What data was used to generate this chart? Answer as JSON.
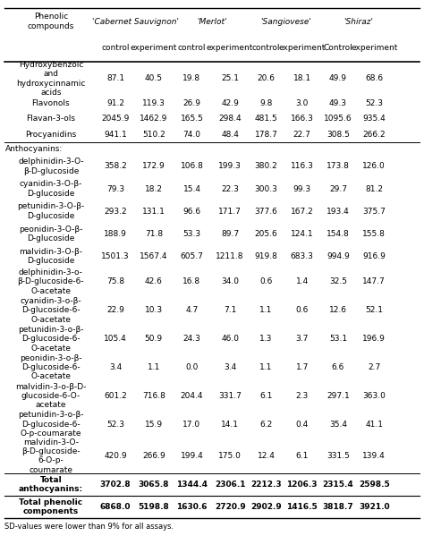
{
  "variety_headers": [
    "'Cabernet Sauvignon'",
    "'Merlot'",
    "'Sangiovese'",
    "'Shiraz'"
  ],
  "sub_headers": [
    "control",
    "experiment",
    "control",
    "experiment",
    "control",
    "experiment",
    "Control",
    "experiment"
  ],
  "rows": [
    [
      "Hydroxybenzoic\nand\nhydroxycinnamic\nacids",
      "87.1",
      "40.5",
      "19.8",
      "25.1",
      "20.6",
      "18.1",
      "49.9",
      "68.6"
    ],
    [
      "Flavonols",
      "91.2",
      "119.3",
      "26.9",
      "42.9",
      "9.8",
      "3.0",
      "49.3",
      "52.3"
    ],
    [
      "Flavan-3-ols",
      "2045.9",
      "1462.9",
      "165.5",
      "298.4",
      "481.5",
      "166.3",
      "1095.6",
      "935.4"
    ],
    [
      "Procyanidins",
      "941.1",
      "510.2",
      "74.0",
      "48.4",
      "178.7",
      "22.7",
      "308.5",
      "266.2"
    ],
    [
      "Anthocyanins:",
      "",
      "",
      "",
      "",
      "",
      "",
      "",
      ""
    ],
    [
      "delphinidin-3-O-\nβ-D-glucoside",
      "358.2",
      "172.9",
      "106.8",
      "199.3",
      "380.2",
      "116.3",
      "173.8",
      "126.0"
    ],
    [
      "cyanidin-3-O-β-\nD-glucoside",
      "79.3",
      "18.2",
      "15.4",
      "22.3",
      "300.3",
      "99.3",
      "29.7",
      "81.2"
    ],
    [
      "petunidin-3-O-β-\nD-glucoside",
      "293.2",
      "131.1",
      "96.6",
      "171.7",
      "377.6",
      "167.2",
      "193.4",
      "375.7"
    ],
    [
      "peonidin-3-O-β-\nD-glucoside",
      "188.9",
      "71.8",
      "53.3",
      "89.7",
      "205.6",
      "124.1",
      "154.8",
      "155.8"
    ],
    [
      "malvidin-3-O-β-\nD-glucoside",
      "1501.3",
      "1567.4",
      "605.7",
      "1211.8",
      "919.8",
      "683.3",
      "994.9",
      "916.9"
    ],
    [
      "delphinidin-3-o-\nβ-D-glucoside-6-\nO-acetate",
      "75.8",
      "42.6",
      "16.8",
      "34.0",
      "0.6",
      "1.4",
      "32.5",
      "147.7"
    ],
    [
      "cyanidin-3-o-β-\nD-glucoside-6-\nO-acetate",
      "22.9",
      "10.3",
      "4.7",
      "7.1",
      "1.1",
      "0.6",
      "12.6",
      "52.1"
    ],
    [
      "petunidin-3-o-β-\nD-glucoside-6-\nO-acetate",
      "105.4",
      "50.9",
      "24.3",
      "46.0",
      "1.3",
      "3.7",
      "53.1",
      "196.9"
    ],
    [
      "peonidin-3-o-β-\nD-glucoside-6-\nO-acetate",
      "3.4",
      "1.1",
      "0.0",
      "3.4",
      "1.1",
      "1.7",
      "6.6",
      "2.7"
    ],
    [
      "malvidin-3-o-β-D-\nglucoside-6-O-\nacetate",
      "601.2",
      "716.8",
      "204.4",
      "331.7",
      "6.1",
      "2.3",
      "297.1",
      "363.0"
    ],
    [
      "petunidin-3-o-β-\nD-glucoside-6-\nO-p-coumarate",
      "52.3",
      "15.9",
      "17.0",
      "14.1",
      "6.2",
      "0.4",
      "35.4",
      "41.1"
    ],
    [
      "malvidin-3-O-\nβ-D-glucoside-\n6-O-p-\ncoumarate",
      "420.9",
      "266.9",
      "199.4",
      "175.0",
      "12.4",
      "6.1",
      "331.5",
      "139.4"
    ],
    [
      "Total\nanthocyanins:",
      "3702.8",
      "3065.8",
      "1344.4",
      "2306.1",
      "2212.3",
      "1206.3",
      "2315.4",
      "2598.5"
    ],
    [
      "Total phenolic\ncomponents",
      "6868.0",
      "5198.8",
      "1630.6",
      "2720.9",
      "2902.9",
      "1416.5",
      "3818.7",
      "3921.0"
    ]
  ],
  "footer": "SD-values were lower than 9% for all assays.",
  "bold_rows": [
    17,
    18
  ],
  "section_rows": [
    4
  ],
  "bg_color": "#ffffff",
  "text_color": "#000000",
  "font_size": 6.5
}
